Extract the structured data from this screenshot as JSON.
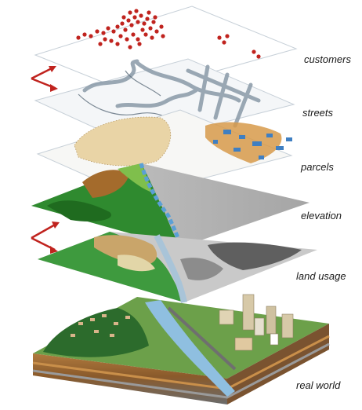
{
  "layers": [
    {
      "id": "customers",
      "label": "customers"
    },
    {
      "id": "streets",
      "label": "streets"
    },
    {
      "id": "parcels",
      "label": "parcels"
    },
    {
      "id": "elevation",
      "label": "elevation"
    },
    {
      "id": "land-usage",
      "label": "land usage"
    },
    {
      "id": "real-world",
      "label": "real world"
    }
  ],
  "colors": {
    "customer_dot": "#c0231e",
    "arrow": "#c0231e",
    "street": "#8a9aa8",
    "river": "#6aa9d8",
    "parcel_sand": "#e9d4a6",
    "parcel_orange": "#d79a4a",
    "parcel_blue": "#3f7fc2",
    "elevation_green": "#2f8a2f",
    "elevation_gray": "#b3b3b3",
    "elevation_brown": "#a46b2c",
    "land_green": "#3e9a3e",
    "land_tan": "#c9a56a",
    "land_gray": "#8c8c8c",
    "soil_brown": "#8a5a2b",
    "rock_gray": "#9a9a9a"
  }
}
